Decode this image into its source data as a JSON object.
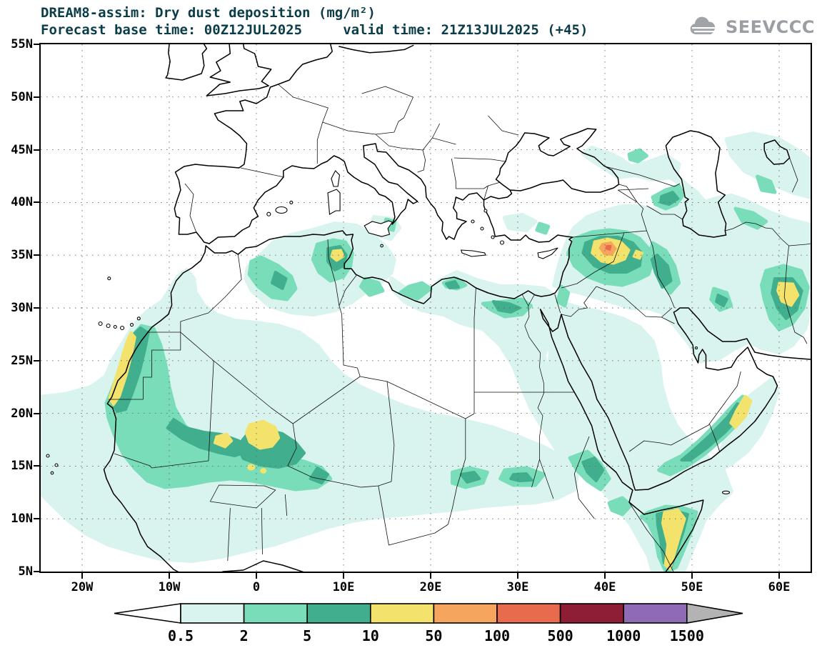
{
  "header": {
    "title_line1": "DREAM8-assim: Dry dust deposition (mg/m²)",
    "title_line2": "Forecast base time: 00Z12JUL2025     valid time: 21Z13JUL2025 (+45)",
    "logo_text": "SEEVCCC"
  },
  "map": {
    "lat_labels": [
      "55N",
      "50N",
      "45N",
      "40N",
      "35N",
      "30N",
      "25N",
      "20N",
      "15N",
      "10N",
      "5N"
    ],
    "lon_labels": [
      "20W",
      "10W",
      "0",
      "10E",
      "20E",
      "30E",
      "40E",
      "50E",
      "60E"
    ]
  },
  "colors": {
    "title": "#0b3d49",
    "logo": "#9b9ea3",
    "axis_text": "#000000",
    "coastline": "#000000"
  },
  "chart_data": {
    "type": "heatmap",
    "title": "DREAM8-assim: Dry dust deposition (mg/m²)",
    "subtitle": "Forecast base time: 00Z12JUL2025     valid time: 21Z13JUL2025 (+45)",
    "model": "DREAM8-assim",
    "variable": "Dry dust deposition",
    "units": "mg/m²",
    "forecast_base_time": "00Z12JUL2025",
    "valid_time": "21Z13JUL2025",
    "forecast_offset_hours": 45,
    "projection": "lat-lon",
    "lon_range": [
      -25,
      64
    ],
    "lat_range": [
      5,
      55
    ],
    "x_ticks": [
      "20W",
      "10W",
      "0",
      "10E",
      "20E",
      "30E",
      "40E",
      "50E",
      "60E"
    ],
    "y_ticks": [
      "5N",
      "10N",
      "15N",
      "20N",
      "25N",
      "30N",
      "35N",
      "40N",
      "45N",
      "50N",
      "55N"
    ],
    "grid": "dotted",
    "legend": {
      "position": "bottom",
      "open_ended": true,
      "levels": [
        "0.5",
        "2",
        "5",
        "10",
        "50",
        "100",
        "500",
        "1000",
        "1500"
      ],
      "colors": [
        "#ffffff",
        "#d9f3ee",
        "#79ddba",
        "#41ae8e",
        "#f3e36c",
        "#f5a55e",
        "#e86b4e",
        "#8e1d36",
        "#8f6bb5",
        "#b3b3b3"
      ]
    },
    "maxima": [
      {
        "location": "Syria/Iraq border (~40E, 36N)",
        "value_range_mg_m2": "100-500"
      },
      {
        "location": "Western Sahara coast (~15W, 21-27N)",
        "value_range_mg_m2": "10-50"
      },
      {
        "location": "Mali/Niger (~0-2E, 16-19N)",
        "value_range_mg_m2": "10-50"
      },
      {
        "location": "Central Tunisia (~9E, 35N)",
        "value_range_mg_m2": "10-50"
      },
      {
        "location": "Eastern Iran / Sistan (~61E, 31-32N)",
        "value_range_mg_m2": "10-50"
      },
      {
        "location": "Oman (~55-57E, 18-21N)",
        "value_range_mg_m2": "10-50"
      },
      {
        "location": "Somalia coast (~47-49E, 5-11N)",
        "value_range_mg_m2": "10-50"
      },
      {
        "location": "NE Black Sea / Caucasus",
        "value_range_mg_m2": "2-10"
      }
    ],
    "background": "Broad 0.5-5 mg/m² deposition over the Sahara, Sahel, eastern Mediterranean, Middle East, Arabian Peninsula and Horn of Africa; Atlantic dust plume west of Senegal/Mauritania"
  }
}
